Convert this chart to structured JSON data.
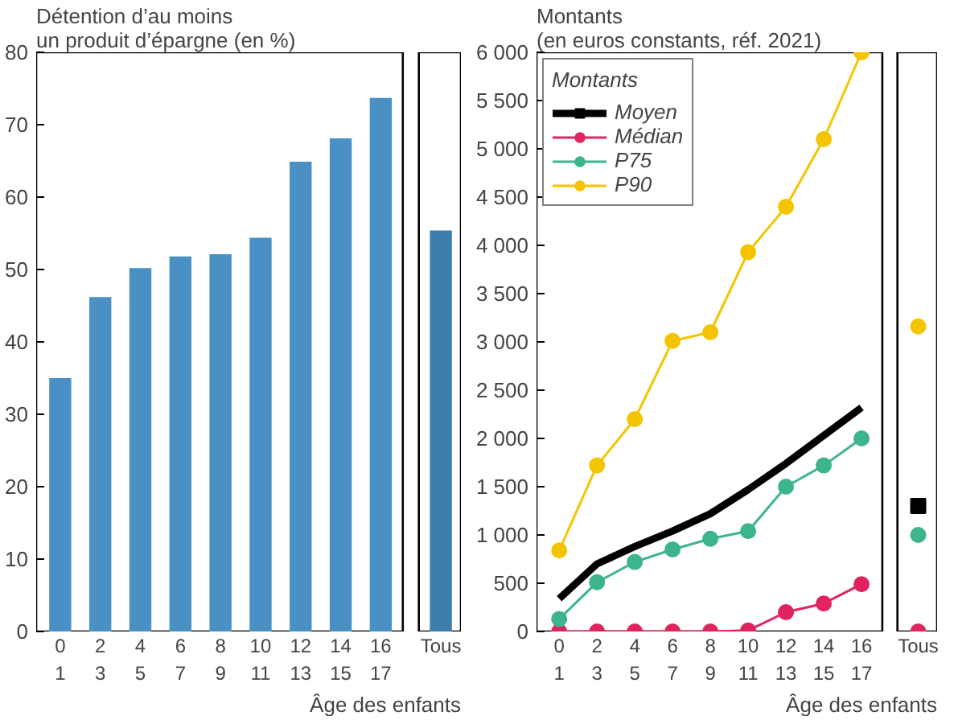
{
  "chart_data": [
    {
      "type": "bar",
      "title": "Détention d’au moins\nun produit d’épargne (en %)",
      "xlabel": "Âge des enfants",
      "categories": [
        "0\n1",
        "2\n3",
        "4\n5",
        "6\n7",
        "8\n9",
        "10\n11",
        "12\n13",
        "14\n15",
        "16\n17",
        "Tous"
      ],
      "values": [
        35,
        46.2,
        50.2,
        51.8,
        52.1,
        54.4,
        64.9,
        68.1,
        73.7,
        55.4
      ],
      "colors": [
        "#4a90c4",
        "#4a90c4",
        "#4a90c4",
        "#4a90c4",
        "#4a90c4",
        "#4a90c4",
        "#4a90c4",
        "#4a90c4",
        "#4a90c4",
        "#3f7dad"
      ],
      "ylim": [
        0,
        80
      ],
      "yticks": [
        0,
        10,
        20,
        30,
        40,
        50,
        60,
        70,
        80
      ]
    },
    {
      "type": "line",
      "title": "Montants\n(en euros constants, réf. 2021)",
      "xlabel": "Âge des enfants",
      "categories": [
        "0\n1",
        "2\n3",
        "4\n5",
        "6\n7",
        "8\n9",
        "10\n11",
        "12\n13",
        "14\n15",
        "16\n17",
        "Tous"
      ],
      "legend": "top left",
      "legend_title": "Montants",
      "marker": "circle",
      "ylim": [
        0,
        6000
      ],
      "yticks": [
        0,
        500,
        {
          "value": 1000,
          "label": "1 000"
        },
        {
          "value": 1500,
          "label": "1 500"
        },
        {
          "value": 2000,
          "label": "2 000"
        },
        {
          "value": 2500,
          "label": "2 500"
        },
        {
          "value": 3000,
          "label": "3 000"
        },
        {
          "value": 3500,
          "label": "3 500"
        },
        {
          "value": 4000,
          "label": "4 000"
        },
        {
          "value": 4500,
          "label": "4 500"
        },
        {
          "value": 5000,
          "label": "5 000"
        },
        {
          "value": 5500,
          "label": "5 500"
        },
        {
          "value": 6000,
          "label": "6 000"
        }
      ],
      "series": [
        {
          "name": "Moyen",
          "color": "#000000",
          "marker": "none",
          "values": [
            340,
            700,
            880,
            1040,
            1220,
            1470,
            1740,
            2030,
            2320,
            null
          ]
        },
        {
          "name": "Médian",
          "color": "#e0245e",
          "values": [
            0,
            0,
            0,
            0,
            0,
            10,
            200,
            290,
            490,
            null
          ]
        },
        {
          "name": "P75",
          "color": "#3db58a",
          "values": [
            130,
            510,
            720,
            850,
            960,
            1040,
            1500,
            1720,
            2000,
            null
          ]
        },
        {
          "name": "P90",
          "color": "#f5c400",
          "values": [
            840,
            1720,
            2200,
            3010,
            3100,
            3930,
            4400,
            5100,
            6000,
            null
          ]
        },
        {
          "type": "scatter",
          "x": [
            "Tous"
          ],
          "color": "#000000",
          "marker": "square",
          "values": [
            1300
          ]
        },
        {
          "type": "scatter",
          "x": [
            "Tous"
          ],
          "color": "#e0245e",
          "values": [
            0
          ]
        },
        {
          "type": "scatter",
          "x": [
            "Tous"
          ],
          "color": "#3db58a",
          "values": [
            1000
          ]
        },
        {
          "type": "scatter",
          "x": [
            "Tous"
          ],
          "color": "#f5c400",
          "values": [
            3160
          ]
        }
      ]
    }
  ]
}
